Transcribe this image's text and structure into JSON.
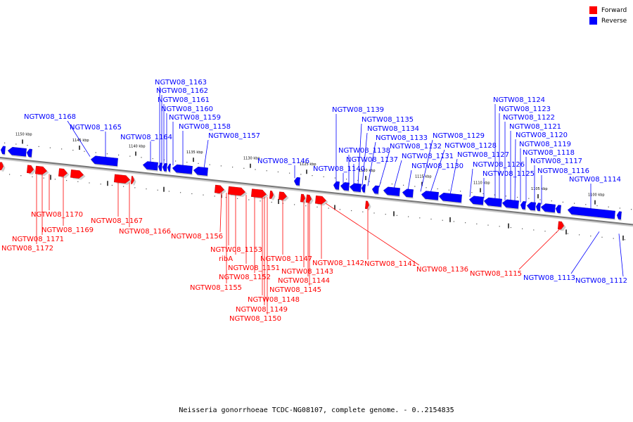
{
  "caption": "Neisseria gonorrhoeae TCDC-NG08107, complete genome. - 0..2154835",
  "legend": [
    {
      "label": "Forward",
      "color": "#ff0000"
    },
    {
      "label": "Reverse",
      "color": "#0000ff"
    }
  ],
  "colors": {
    "forward": "#ff0000",
    "reverse": "#0000ff",
    "backbone": "#777777"
  },
  "scale_labels": [
    "1150 kbp",
    "1145 kbp",
    "1140 kbp",
    "1135 kbp",
    "1130 kbp",
    "1125 kbp",
    "1120 kbp",
    "1115 kbp",
    "1110 kbp",
    "1105 kbp",
    "1100 kbp"
  ],
  "reverse_genes": [
    "NGTW08_1168",
    "NGTW08_1165",
    "NGTW08_1164",
    "NGTW08_1163",
    "NGTW08_1162",
    "NGTW08_1161",
    "NGTW08_1160",
    "NGTW08_1159",
    "NGTW08_1158",
    "NGTW08_1157",
    "NGTW08_1146",
    "NGTW08_1139",
    "NGTW08_1135",
    "NGTW08_1134",
    "NGTW08_1133",
    "NGTW08_1132",
    "NGTW08_1131",
    "NGTW08_1138",
    "NGTW08_1137",
    "NGTW08_1140",
    "NGTW08_1130",
    "NGTW08_1129",
    "NGTW08_1128",
    "NGTW08_1127",
    "NGTW08_1126",
    "NGTW08_1125",
    "NGTW08_1124",
    "NGTW08_1123",
    "NGTW08_1122",
    "NGTW08_1121",
    "NGTW08_1120",
    "NGTW08_1119",
    "NGTW08_1118",
    "NGTW08_1117",
    "NGTW08_1116",
    "NGTW08_1114",
    "NGTW08_1113",
    "NGTW08_1112"
  ],
  "forward_genes": [
    "NGTW08_1170",
    "NGTW08_1169",
    "NGTW08_1171",
    "NGTW08_1172",
    "NGTW08_1167",
    "NGTW08_1166",
    "NGTW08_1156",
    "NGTW08_1153",
    "ribA",
    "NGTW08_1151",
    "NGTW08_1152",
    "NGTW08_1155",
    "NGTW08_1147",
    "NGTW08_1143",
    "NGTW08_1144",
    "NGTW08_1145",
    "NGTW08_1148",
    "NGTW08_1149",
    "NGTW08_1150",
    "NGTW08_1142",
    "NGTW08_1141",
    "NGTW08_1136",
    "NGTW08_1115"
  ]
}
